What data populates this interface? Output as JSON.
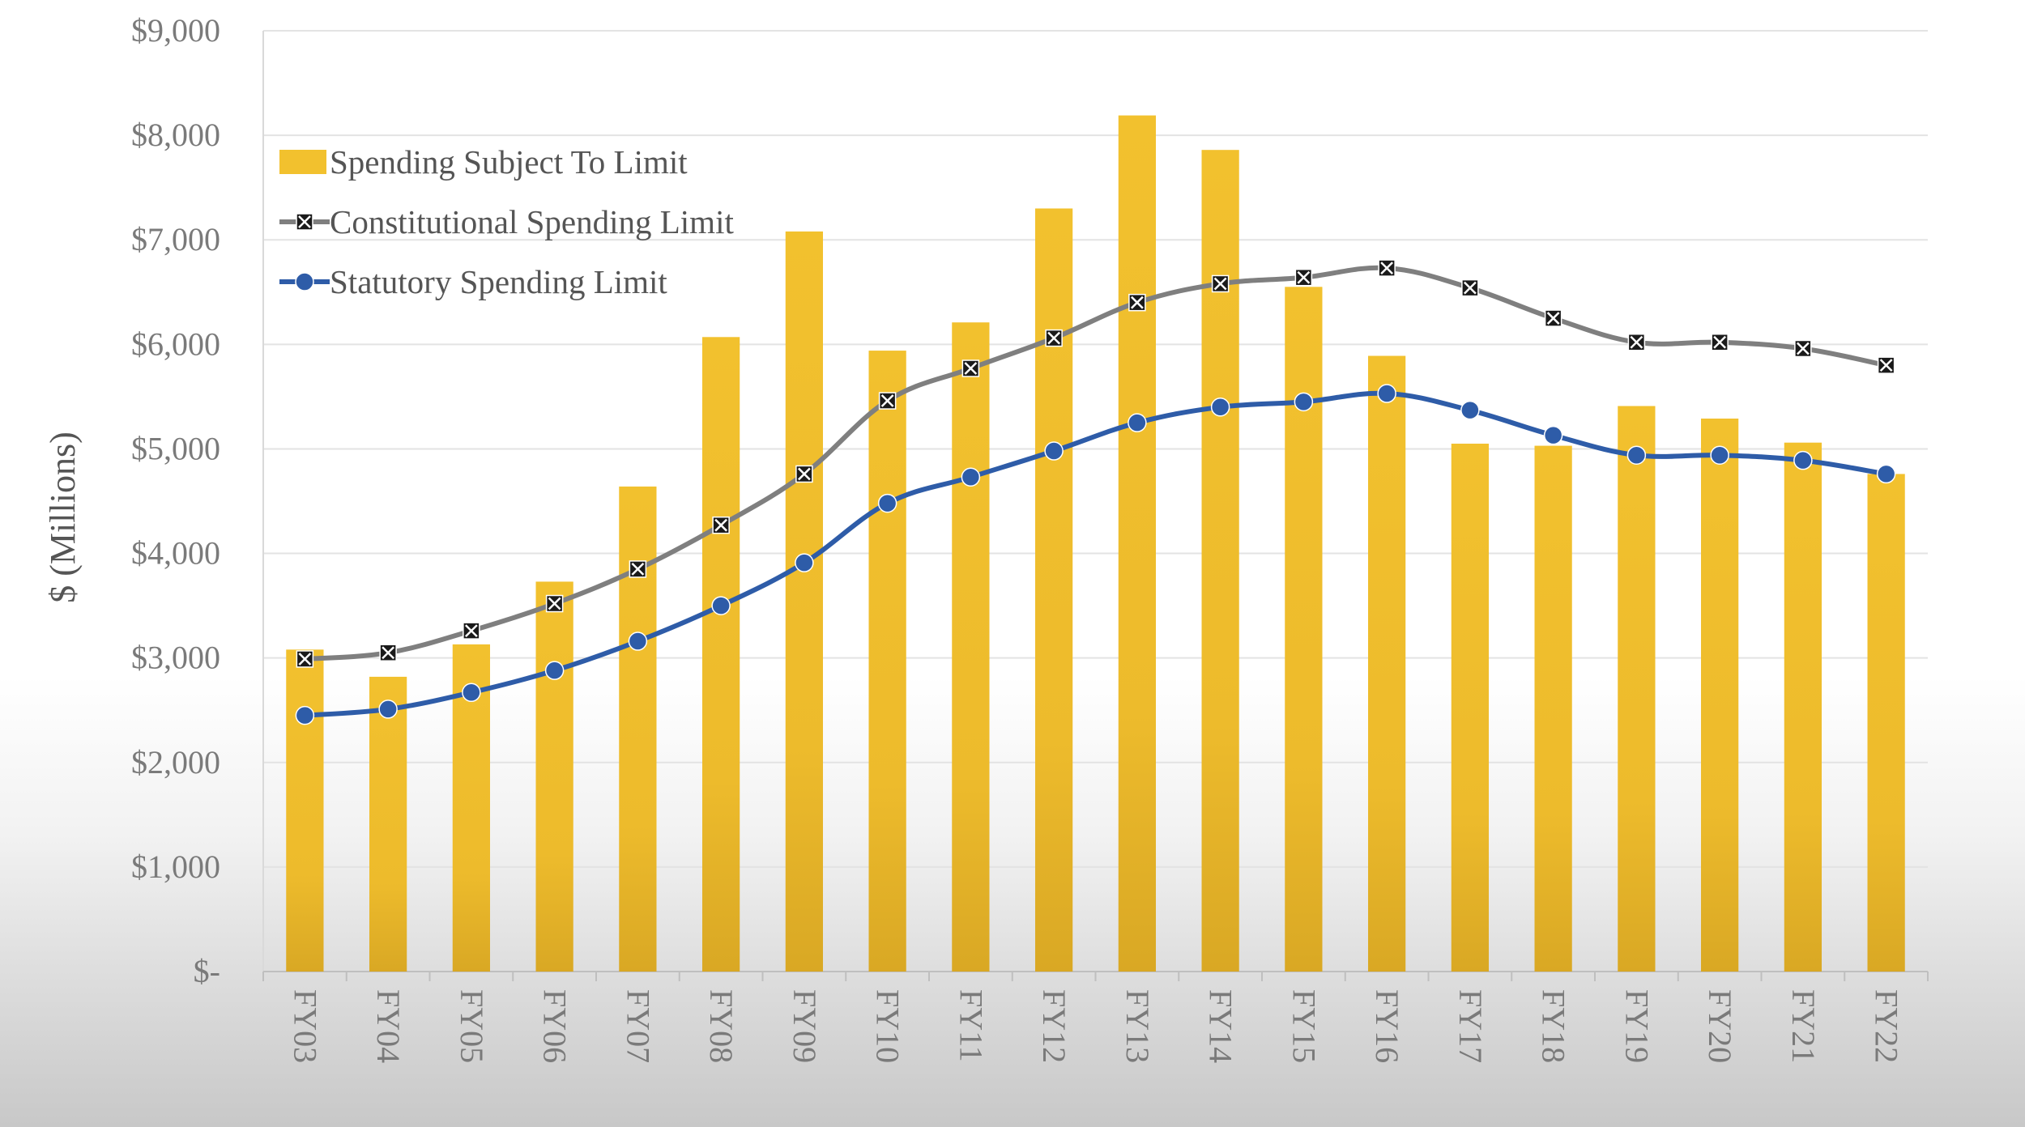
{
  "chart_data": {
    "type": "bar",
    "title": "",
    "xlabel": "",
    "ylabel": "$ (Millions)",
    "ylim": [
      0,
      9000
    ],
    "yticks": [
      0,
      1000,
      2000,
      3000,
      4000,
      5000,
      6000,
      7000,
      8000,
      9000
    ],
    "ytick_labels": [
      "$-",
      "$1,000",
      "$2,000",
      "$3,000",
      "$4,000",
      "$5,000",
      "$6,000",
      "$7,000",
      "$8,000",
      "$9,000"
    ],
    "categories": [
      "FY03",
      "FY04",
      "FY05",
      "FY06",
      "FY07",
      "FY08",
      "FY09",
      "FY10",
      "FY11",
      "FY12",
      "FY13",
      "FY14",
      "FY15",
      "FY16",
      "FY17",
      "FY18",
      "FY19",
      "FY20",
      "FY21",
      "FY22"
    ],
    "grid": true,
    "legend_position": "top-left",
    "series": [
      {
        "name": "Spending Subject To Limit",
        "kind": "bar",
        "color": "#F2C12E",
        "values": [
          3080,
          2820,
          3130,
          3730,
          4640,
          6070,
          7080,
          5940,
          6210,
          7300,
          8190,
          7860,
          6550,
          5890,
          5050,
          5030,
          5410,
          5290,
          5060,
          4760
        ]
      },
      {
        "name": "Constitutional Spending Limit",
        "kind": "line",
        "color": "#7F7F7F",
        "marker": "x-box",
        "values": [
          2990,
          3050,
          3260,
          3520,
          3850,
          4270,
          4760,
          5460,
          5770,
          6060,
          6400,
          6580,
          6640,
          6730,
          6540,
          6250,
          6020,
          6020,
          5960,
          5800
        ]
      },
      {
        "name": "Statutory Spending Limit",
        "kind": "line",
        "color": "#2E5CA8",
        "marker": "circle",
        "values": [
          2450,
          2510,
          2670,
          2880,
          3160,
          3500,
          3910,
          4480,
          4730,
          4980,
          5250,
          5400,
          5450,
          5530,
          5370,
          5130,
          4940,
          4940,
          4890,
          4760
        ]
      }
    ]
  }
}
